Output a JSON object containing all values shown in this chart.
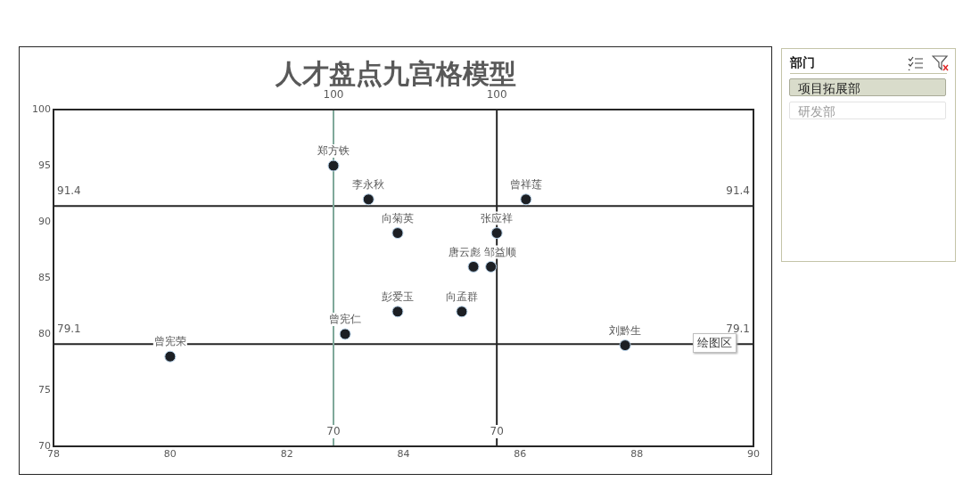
{
  "chart_data": [
    {
      "type": "scatter",
      "title": "人才盘点九宫格模型",
      "xlim": [
        78,
        90
      ],
      "ylim": [
        70,
        100
      ],
      "xticks": [
        78,
        80,
        82,
        84,
        86,
        88,
        90
      ],
      "yticks": [
        70,
        75,
        80,
        85,
        90,
        95,
        100
      ],
      "grid": false,
      "legend": false,
      "marker": "circle",
      "annotations": [
        "绘图区"
      ],
      "series": [
        {
          "type": "scatter",
          "color": "#1c1f24",
          "x": [
            82.8,
            83.4,
            83.9,
            85.6,
            86.1,
            85.2,
            85.5,
            83.9,
            85.0,
            83.0,
            80.0,
            87.8
          ],
          "values": [
            95,
            92,
            89,
            89,
            92,
            86,
            86,
            82,
            82,
            80,
            78,
            79
          ],
          "value_labels": [
            "郑方铁",
            "李永秋",
            "向菊英",
            "张应祥",
            "曾祥莲",
            "唐云彪",
            "邹益顺",
            "彭爱玉",
            "向孟群",
            "曾宪仁",
            "曾宪荣",
            "刘黔生"
          ]
        },
        {
          "type": "line",
          "color": "#7fa89a",
          "marker": "none",
          "x": [
            82.8,
            82.8
          ],
          "values": [
            70,
            100
          ],
          "value_labels": [
            "70",
            "100"
          ]
        },
        {
          "type": "line",
          "color": "#262626",
          "marker": "none",
          "x": [
            85.6,
            85.6
          ],
          "values": [
            70,
            100
          ],
          "value_labels": [
            "70",
            "100"
          ]
        },
        {
          "type": "line",
          "color": "#262626",
          "marker": "none",
          "x": [
            78,
            90
          ],
          "values": [
            91.4,
            91.4
          ],
          "value_labels": [
            "91.4",
            "91.4"
          ]
        },
        {
          "type": "line",
          "color": "#262626",
          "marker": "none",
          "x": [
            78,
            90
          ],
          "values": [
            79.1,
            79.1
          ],
          "value_labels": [
            "79.1",
            "79.1"
          ]
        }
      ]
    },
    {
      "type": "other",
      "title": "部门",
      "annotations": [
        "项目拓展部",
        "研发部"
      ]
    }
  ]
}
